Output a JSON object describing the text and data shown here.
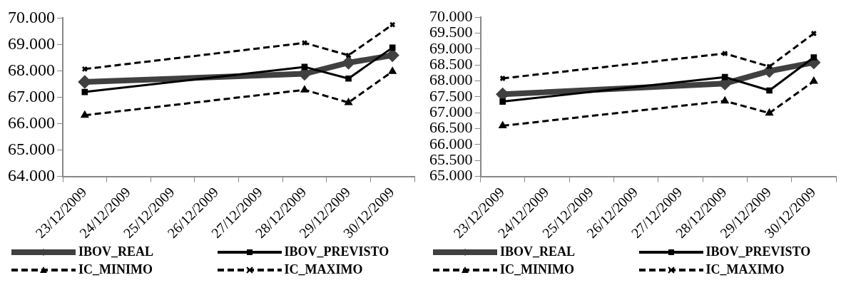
{
  "chart_data": [
    {
      "type": "line",
      "categories": [
        "23/12/2009",
        "24/12/2009",
        "25/12/2009",
        "26/12/2009",
        "27/12/2009",
        "28/12/2009",
        "29/12/2009",
        "30/12/2009"
      ],
      "ylim": [
        64000,
        70000
      ],
      "yticks": [
        {
          "value": 64000,
          "label": "64.000"
        },
        {
          "value": 65000,
          "label": "65.000"
        },
        {
          "value": 66000,
          "label": "66.000"
        },
        {
          "value": 67000,
          "label": "67.000"
        },
        {
          "value": 68000,
          "label": "68.000"
        },
        {
          "value": 69000,
          "label": "69.000"
        },
        {
          "value": 70000,
          "label": "70.000"
        }
      ],
      "grid": false,
      "legend": "bottom",
      "series": [
        {
          "name": "IBOV_REAL",
          "color": "#404040",
          "marker": "diamond",
          "line_style": "solid",
          "values": [
            67580,
            null,
            null,
            null,
            null,
            67890,
            68310,
            68590
          ]
        },
        {
          "name": "IBOV_PREVISTO",
          "color": "#000000",
          "marker": "square",
          "line_style": "solid",
          "values": [
            67200,
            null,
            null,
            null,
            null,
            68150,
            67710,
            68880
          ]
        },
        {
          "name": "IC_MINIMO",
          "color": "#000000",
          "marker": "triangle",
          "line_style": "dashed",
          "values": [
            66320,
            null,
            null,
            null,
            null,
            67280,
            66800,
            67980
          ]
        },
        {
          "name": "IC_MAXIMO",
          "color": "#000000",
          "marker": "cross",
          "line_style": "dashed",
          "values": [
            68070,
            null,
            null,
            null,
            null,
            69060,
            68590,
            69750
          ]
        }
      ]
    },
    {
      "type": "line",
      "categories": [
        "23/12/2009",
        "24/12/2009",
        "25/12/2009",
        "26/12/2009",
        "27/12/2009",
        "28/12/2009",
        "29/12/2009",
        "30/12/2009"
      ],
      "ylim": [
        65000,
        70000
      ],
      "yticks": [
        {
          "value": 65000,
          "label": "65.000"
        },
        {
          "value": 65500,
          "label": "65.500"
        },
        {
          "value": 66000,
          "label": "66.000"
        },
        {
          "value": 66500,
          "label": "66.500"
        },
        {
          "value": 67000,
          "label": "67.000"
        },
        {
          "value": 67500,
          "label": "67.500"
        },
        {
          "value": 68000,
          "label": "68.000"
        },
        {
          "value": 68500,
          "label": "68.500"
        },
        {
          "value": 69000,
          "label": "69.000"
        },
        {
          "value": 69500,
          "label": "69.500"
        },
        {
          "value": 70000,
          "label": "70.000"
        }
      ],
      "grid": false,
      "legend": "bottom",
      "series": [
        {
          "name": "IBOV_REAL",
          "color": "#404040",
          "marker": "diamond",
          "line_style": "solid",
          "values": [
            67580,
            null,
            null,
            null,
            null,
            67920,
            68310,
            68580
          ]
        },
        {
          "name": "IBOV_PREVISTO",
          "color": "#000000",
          "marker": "square",
          "line_style": "solid",
          "values": [
            67350,
            null,
            null,
            null,
            null,
            68120,
            67700,
            68740
          ]
        },
        {
          "name": "IC_MINIMO",
          "color": "#000000",
          "marker": "triangle",
          "line_style": "dashed",
          "values": [
            66590,
            null,
            null,
            null,
            null,
            67370,
            66990,
            67990
          ]
        },
        {
          "name": "IC_MAXIMO",
          "color": "#000000",
          "marker": "cross",
          "line_style": "dashed",
          "values": [
            68080,
            null,
            null,
            null,
            null,
            68860,
            68450,
            69490
          ]
        }
      ]
    }
  ]
}
